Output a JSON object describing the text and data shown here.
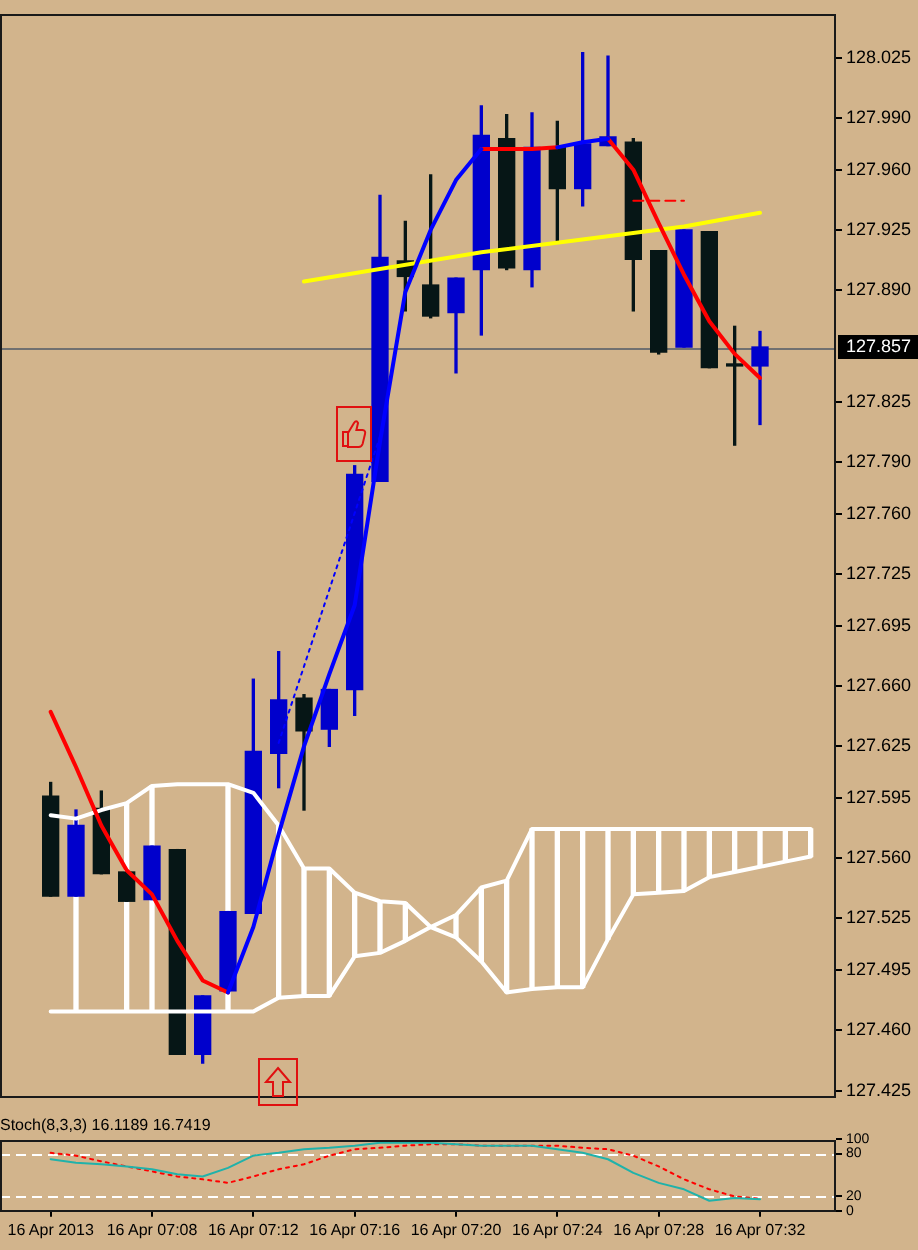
{
  "chart_data": [
    {
      "type": "candlestick",
      "x": [
        "2013-04-16T07:04",
        "2013-04-16T07:05",
        "2013-04-16T07:06",
        "2013-04-16T07:07",
        "2013-04-16T07:08",
        "2013-04-16T07:09",
        "2013-04-16T07:10",
        "2013-04-16T07:11",
        "2013-04-16T07:12",
        "2013-04-16T07:13",
        "2013-04-16T07:14",
        "2013-04-16T07:15",
        "2013-04-16T07:16",
        "2013-04-16T07:17",
        "2013-04-16T07:18",
        "2013-04-16T07:19",
        "2013-04-16T07:20",
        "2013-04-16T07:21",
        "2013-04-16T07:22",
        "2013-04-16T07:23",
        "2013-04-16T07:24",
        "2013-04-16T07:25",
        "2013-04-16T07:26",
        "2013-04-16T07:27",
        "2013-04-16T07:28",
        "2013-04-16T07:29",
        "2013-04-16T07:30",
        "2013-04-16T07:31",
        "2013-04-16T07:32"
      ],
      "ohlc": [
        [
          127.596,
          127.604,
          127.538,
          127.538
        ],
        [
          127.538,
          127.588,
          127.538,
          127.579
        ],
        [
          127.589,
          127.599,
          127.551,
          127.551
        ],
        [
          127.552,
          127.552,
          127.535,
          127.535
        ],
        [
          127.536,
          127.567,
          127.536,
          127.567
        ],
        [
          127.565,
          127.565,
          127.446,
          127.446
        ],
        [
          127.446,
          127.48,
          127.441,
          127.48
        ],
        [
          127.483,
          127.529,
          127.483,
          127.529
        ],
        [
          127.528,
          127.664,
          127.528,
          127.622
        ],
        [
          127.621,
          127.68,
          127.601,
          127.652
        ],
        [
          127.653,
          127.655,
          127.588,
          127.634
        ],
        [
          127.635,
          127.658,
          127.625,
          127.658
        ],
        [
          127.658,
          127.788,
          127.643,
          127.783
        ],
        [
          127.779,
          127.945,
          127.779,
          127.909
        ],
        [
          127.907,
          127.93,
          127.878,
          127.898
        ],
        [
          127.893,
          127.957,
          127.874,
          127.875
        ],
        [
          127.877,
          127.897,
          127.842,
          127.897
        ],
        [
          127.902,
          127.997,
          127.864,
          127.98
        ],
        [
          127.978,
          127.992,
          127.902,
          127.903
        ],
        [
          127.902,
          127.993,
          127.892,
          127.973
        ],
        [
          127.973,
          127.988,
          127.918,
          127.949
        ],
        [
          127.949,
          128.028,
          127.939,
          127.975
        ],
        [
          127.974,
          128.026,
          127.974,
          127.979
        ],
        [
          127.976,
          127.978,
          127.878,
          127.908
        ],
        [
          127.913,
          127.913,
          127.853,
          127.854
        ],
        [
          127.857,
          127.925,
          127.857,
          127.925
        ],
        [
          127.924,
          127.924,
          127.845,
          127.845
        ],
        [
          127.846,
          127.869,
          127.8,
          127.846
        ],
        [
          127.846,
          127.866,
          127.812,
          127.857
        ]
      ],
      "colors": [
        "#061616",
        "#0000cc",
        "#061616",
        "#061616",
        "#0000cc",
        "#061616",
        "#0000cc",
        "#0000cc",
        "#0000cc",
        "#0000cc",
        "#061616",
        "#0000cc",
        "#0000cc",
        "#0000cc",
        "#061616",
        "#061616",
        "#0000cc",
        "#0000cc",
        "#061616",
        "#0000cc",
        "#061616",
        "#0000cc",
        "#0000cc",
        "#061616",
        "#061616",
        "#0000cc",
        "#061616",
        "#061616",
        "#0000cc"
      ],
      "series": [
        {
          "type": "line",
          "color": "#0000ff",
          "values": [
            null,
            null,
            null,
            null,
            null,
            null,
            null,
            127.482,
            127.52,
            127.574,
            127.625,
            127.667,
            127.707,
            127.802,
            127.889,
            127.925,
            127.954,
            127.972,
            null,
            null,
            127.973,
            127.976,
            127.978,
            null,
            null,
            null,
            null,
            null,
            null
          ]
        },
        {
          "type": "line",
          "color": "#ff0000",
          "values": [
            127.645,
            127.613,
            127.579,
            127.553,
            127.539,
            127.512,
            127.489,
            127.482,
            null,
            null,
            null,
            null,
            null,
            null,
            null,
            null,
            null,
            127.972,
            127.972,
            127.972,
            127.973,
            null,
            127.978,
            127.96,
            127.929,
            127.899,
            127.872,
            127.853,
            127.839
          ]
        },
        {
          "type": "line",
          "color": "#ffff00",
          "x": [
            "2013-04-16T07:14",
            "2013-04-16T07:21",
            "2013-04-16T07:29",
            "2013-04-16T07:32"
          ],
          "values": [
            127.895,
            127.912,
            127.927,
            127.935
          ]
        },
        {
          "type": "line",
          "color": "#ffffff",
          "x": [
            "2013-04-16T07:04",
            "2013-04-16T07:05",
            "2013-04-16T07:06",
            "2013-04-16T07:07",
            "2013-04-16T07:08",
            "2013-04-16T07:09",
            "2013-04-16T07:10",
            "2013-04-16T07:11",
            "2013-04-16T07:12",
            "2013-04-16T07:13",
            "2013-04-16T07:14",
            "2013-04-16T07:15",
            "2013-04-16T07:16",
            "2013-04-16T07:17",
            "2013-04-16T07:18",
            "2013-04-16T07:19",
            "2013-04-16T07:20",
            "2013-04-16T07:21",
            "2013-04-16T07:22",
            "2013-04-16T07:23",
            "2013-04-16T07:24",
            "2013-04-16T07:25",
            "2013-04-16T07:26",
            "2013-04-16T07:27",
            "2013-04-16T07:28",
            "2013-04-16T07:29",
            "2013-04-16T07:30",
            "2013-04-16T07:31",
            "2013-04-16T07:32",
            "2013-04-16T07:33",
            "2013-04-16T07:34"
          ],
          "values": [
            127.585,
            127.583,
            127.588,
            127.592,
            127.602,
            127.603,
            127.603,
            127.603,
            127.598,
            127.579,
            127.554,
            127.554,
            127.54,
            127.535,
            127.534,
            127.52,
            127.514,
            127.5,
            127.482,
            127.484,
            127.485,
            127.485,
            127.513,
            127.539,
            127.54,
            127.541,
            127.549,
            127.552,
            127.555,
            127.558,
            127.561
          ]
        },
        {
          "type": "line",
          "color": "#ffffff",
          "x": [
            "2013-04-16T07:04",
            "2013-04-16T07:05",
            "2013-04-16T07:06",
            "2013-04-16T07:07",
            "2013-04-16T07:08",
            "2013-04-16T07:09",
            "2013-04-16T07:10",
            "2013-04-16T07:11",
            "2013-04-16T07:12",
            "2013-04-16T07:13",
            "2013-04-16T07:14",
            "2013-04-16T07:15",
            "2013-04-16T07:16",
            "2013-04-16T07:17",
            "2013-04-16T07:18",
            "2013-04-16T07:19",
            "2013-04-16T07:20",
            "2013-04-16T07:21",
            "2013-04-16T07:22",
            "2013-04-16T07:23",
            "2013-04-16T07:24",
            "2013-04-16T07:25",
            "2013-04-16T07:26",
            "2013-04-16T07:27",
            "2013-04-16T07:28",
            "2013-04-16T07:29",
            "2013-04-16T07:30",
            "2013-04-16T07:31",
            "2013-04-16T07:32",
            "2013-04-16T07:33",
            "2013-04-16T07:34"
          ],
          "values": [
            127.471,
            127.471,
            127.471,
            127.471,
            127.471,
            127.471,
            127.471,
            127.471,
            127.471,
            127.479,
            127.48,
            127.48,
            127.503,
            127.505,
            127.512,
            127.52,
            127.527,
            127.543,
            127.547,
            127.577,
            127.577,
            127.577,
            127.577,
            127.577,
            127.577,
            127.577,
            127.577,
            127.577,
            127.577,
            127.577,
            127.577
          ]
        },
        {
          "type": "bar",
          "color": "#ffffff",
          "x": [
            "2013-04-16T07:05",
            "2013-04-16T07:06",
            "2013-04-16T07:07",
            "2013-04-16T07:08",
            "2013-04-16T07:09",
            "2013-04-16T07:10",
            "2013-04-16T07:11",
            "2013-04-16T07:12",
            "2013-04-16T07:13",
            "2013-04-16T07:14",
            "2013-04-16T07:15",
            "2013-04-16T07:16",
            "2013-04-16T07:17",
            "2013-04-16T07:18",
            "2013-04-16T07:19",
            "2013-04-16T07:20",
            "2013-04-16T07:21",
            "2013-04-16T07:22",
            "2013-04-16T07:23",
            "2013-04-16T07:24",
            "2013-04-16T07:25",
            "2013-04-16T07:26",
            "2013-04-16T07:27",
            "2013-04-16T07:28",
            "2013-04-16T07:29",
            "2013-04-16T07:30",
            "2013-04-16T07:31",
            "2013-04-16T07:32",
            "2013-04-16T07:33",
            "2013-04-16T07:34"
          ],
          "base": [
            127.471,
            null,
            127.471,
            127.471,
            null,
            null,
            127.471,
            null,
            127.479,
            127.48,
            127.48,
            127.503,
            127.505,
            127.512,
            127.52,
            127.527,
            127.543,
            127.547,
            127.577,
            127.577,
            127.577,
            127.577,
            127.577,
            127.577,
            127.577,
            127.577,
            127.577,
            127.577,
            127.577,
            127.577
          ],
          "values": [
            0.112,
            null,
            0.121,
            0.131,
            null,
            null,
            0.132,
            null,
            0.1,
            0.074,
            0.074,
            0.037,
            0.03,
            0.022,
            0,
            -0.013,
            -0.043,
            -0.065,
            -0.093,
            -0.092,
            -0.092,
            -0.064,
            -0.038,
            -0.037,
            -0.036,
            -0.028,
            -0.025,
            -0.022,
            -0.019,
            -0.016
          ]
        },
        {
          "type": "line",
          "color": "#0000ff",
          "line_style": "dotted",
          "x": [
            "2013-04-16T07:13",
            "2013-04-16T07:17"
          ],
          "values": [
            127.627,
            127.805
          ]
        },
        {
          "type": "line",
          "color": "#ff0000",
          "line_style": "dashed",
          "x": [
            "2013-04-16T07:27",
            "2013-04-16T07:29"
          ],
          "values": [
            127.942,
            127.942
          ]
        }
      ],
      "xlim": [
        "2013-04-16T07:02",
        "2013-04-16T07:35"
      ],
      "ylim": [
        127.42,
        128.05
      ],
      "yticks": [
        127.425,
        {
          "value": 127.46,
          "label": "127.460"
        },
        127.495,
        127.525,
        {
          "value": 127.56,
          "label": "127.560"
        },
        127.595,
        127.625,
        {
          "value": 127.66,
          "label": "127.660"
        },
        127.695,
        127.725,
        {
          "value": 127.76,
          "label": "127.760"
        },
        {
          "value": 127.79,
          "label": "127.790"
        },
        127.825,
        {
          "value": 127.89,
          "label": "127.890"
        },
        127.925,
        {
          "value": 127.96,
          "label": "127.960"
        },
        {
          "value": 127.99,
          "label": "127.990"
        },
        128.025
      ],
      "tick_labels": "y",
      "ref_lines": [
        {
          "axis": "y",
          "value": 127.857,
          "label": "127.857",
          "color": "#707070"
        }
      ]
    },
    {
      "type": "line",
      "title": "Stoch(8,3,3) 16.1189 16.7419",
      "x": [
        "2013-04-16T07:04",
        "2013-04-16T07:05",
        "2013-04-16T07:06",
        "2013-04-16T07:07",
        "2013-04-16T07:08",
        "2013-04-16T07:09",
        "2013-04-16T07:10",
        "2013-04-16T07:11",
        "2013-04-16T07:12",
        "2013-04-16T07:13",
        "2013-04-16T07:14",
        "2013-04-16T07:15",
        "2013-04-16T07:16",
        "2013-04-16T07:17",
        "2013-04-16T07:18",
        "2013-04-16T07:19",
        "2013-04-16T07:20",
        "2013-04-16T07:21",
        "2013-04-16T07:22",
        "2013-04-16T07:23",
        "2013-04-16T07:24",
        "2013-04-16T07:25",
        "2013-04-16T07:26",
        "2013-04-16T07:27",
        "2013-04-16T07:28",
        "2013-04-16T07:29",
        "2013-04-16T07:30",
        "2013-04-16T07:31",
        "2013-04-16T07:32"
      ],
      "series": [
        {
          "color": "#20b2aa",
          "values": [
            72,
            67,
            65,
            62,
            58,
            51,
            48,
            60,
            77,
            81,
            86,
            88,
            91,
            95,
            95,
            95,
            93,
            91,
            91,
            91,
            86,
            81,
            72,
            53,
            39,
            30,
            14,
            18,
            16.1189
          ]
        },
        {
          "color": "#ff0000",
          "line_style": "dotted",
          "values": [
            81,
            77,
            69,
            62,
            55,
            48,
            44,
            39,
            48,
            58,
            65,
            77,
            86,
            88,
            91,
            93,
            93,
            91,
            91,
            91,
            91,
            88,
            86,
            77,
            62,
            44,
            30,
            20,
            16.7419
          ]
        }
      ],
      "xlim": [
        "2013-04-16T07:02",
        "2013-04-16T07:35"
      ],
      "xticks": [
        {
          "value": "2013-04-16T07:04",
          "label": "16 Apr 2013"
        },
        {
          "value": "2013-04-16T07:08",
          "label": "16 Apr 07:08"
        },
        {
          "value": "2013-04-16T07:12",
          "label": "16 Apr 07:12"
        },
        {
          "value": "2013-04-16T07:16",
          "label": "16 Apr 07:16"
        },
        {
          "value": "2013-04-16T07:20",
          "label": "16 Apr 07:20"
        },
        {
          "value": "2013-04-16T07:24",
          "label": "16 Apr 07:24"
        },
        {
          "value": "2013-04-16T07:28",
          "label": "16 Apr 07:28"
        },
        {
          "value": "2013-04-16T07:32",
          "label": "16 Apr 07:32"
        }
      ],
      "ylim": [
        0,
        100
      ],
      "yticks": [
        0,
        20,
        80,
        100
      ],
      "ref_lines": [
        {
          "axis": "y",
          "value": 80,
          "color": "#ffffff",
          "line_style": "dashed"
        },
        {
          "axis": "y",
          "value": 20,
          "color": "#ffffff",
          "line_style": "dashed"
        }
      ]
    }
  ]
}
